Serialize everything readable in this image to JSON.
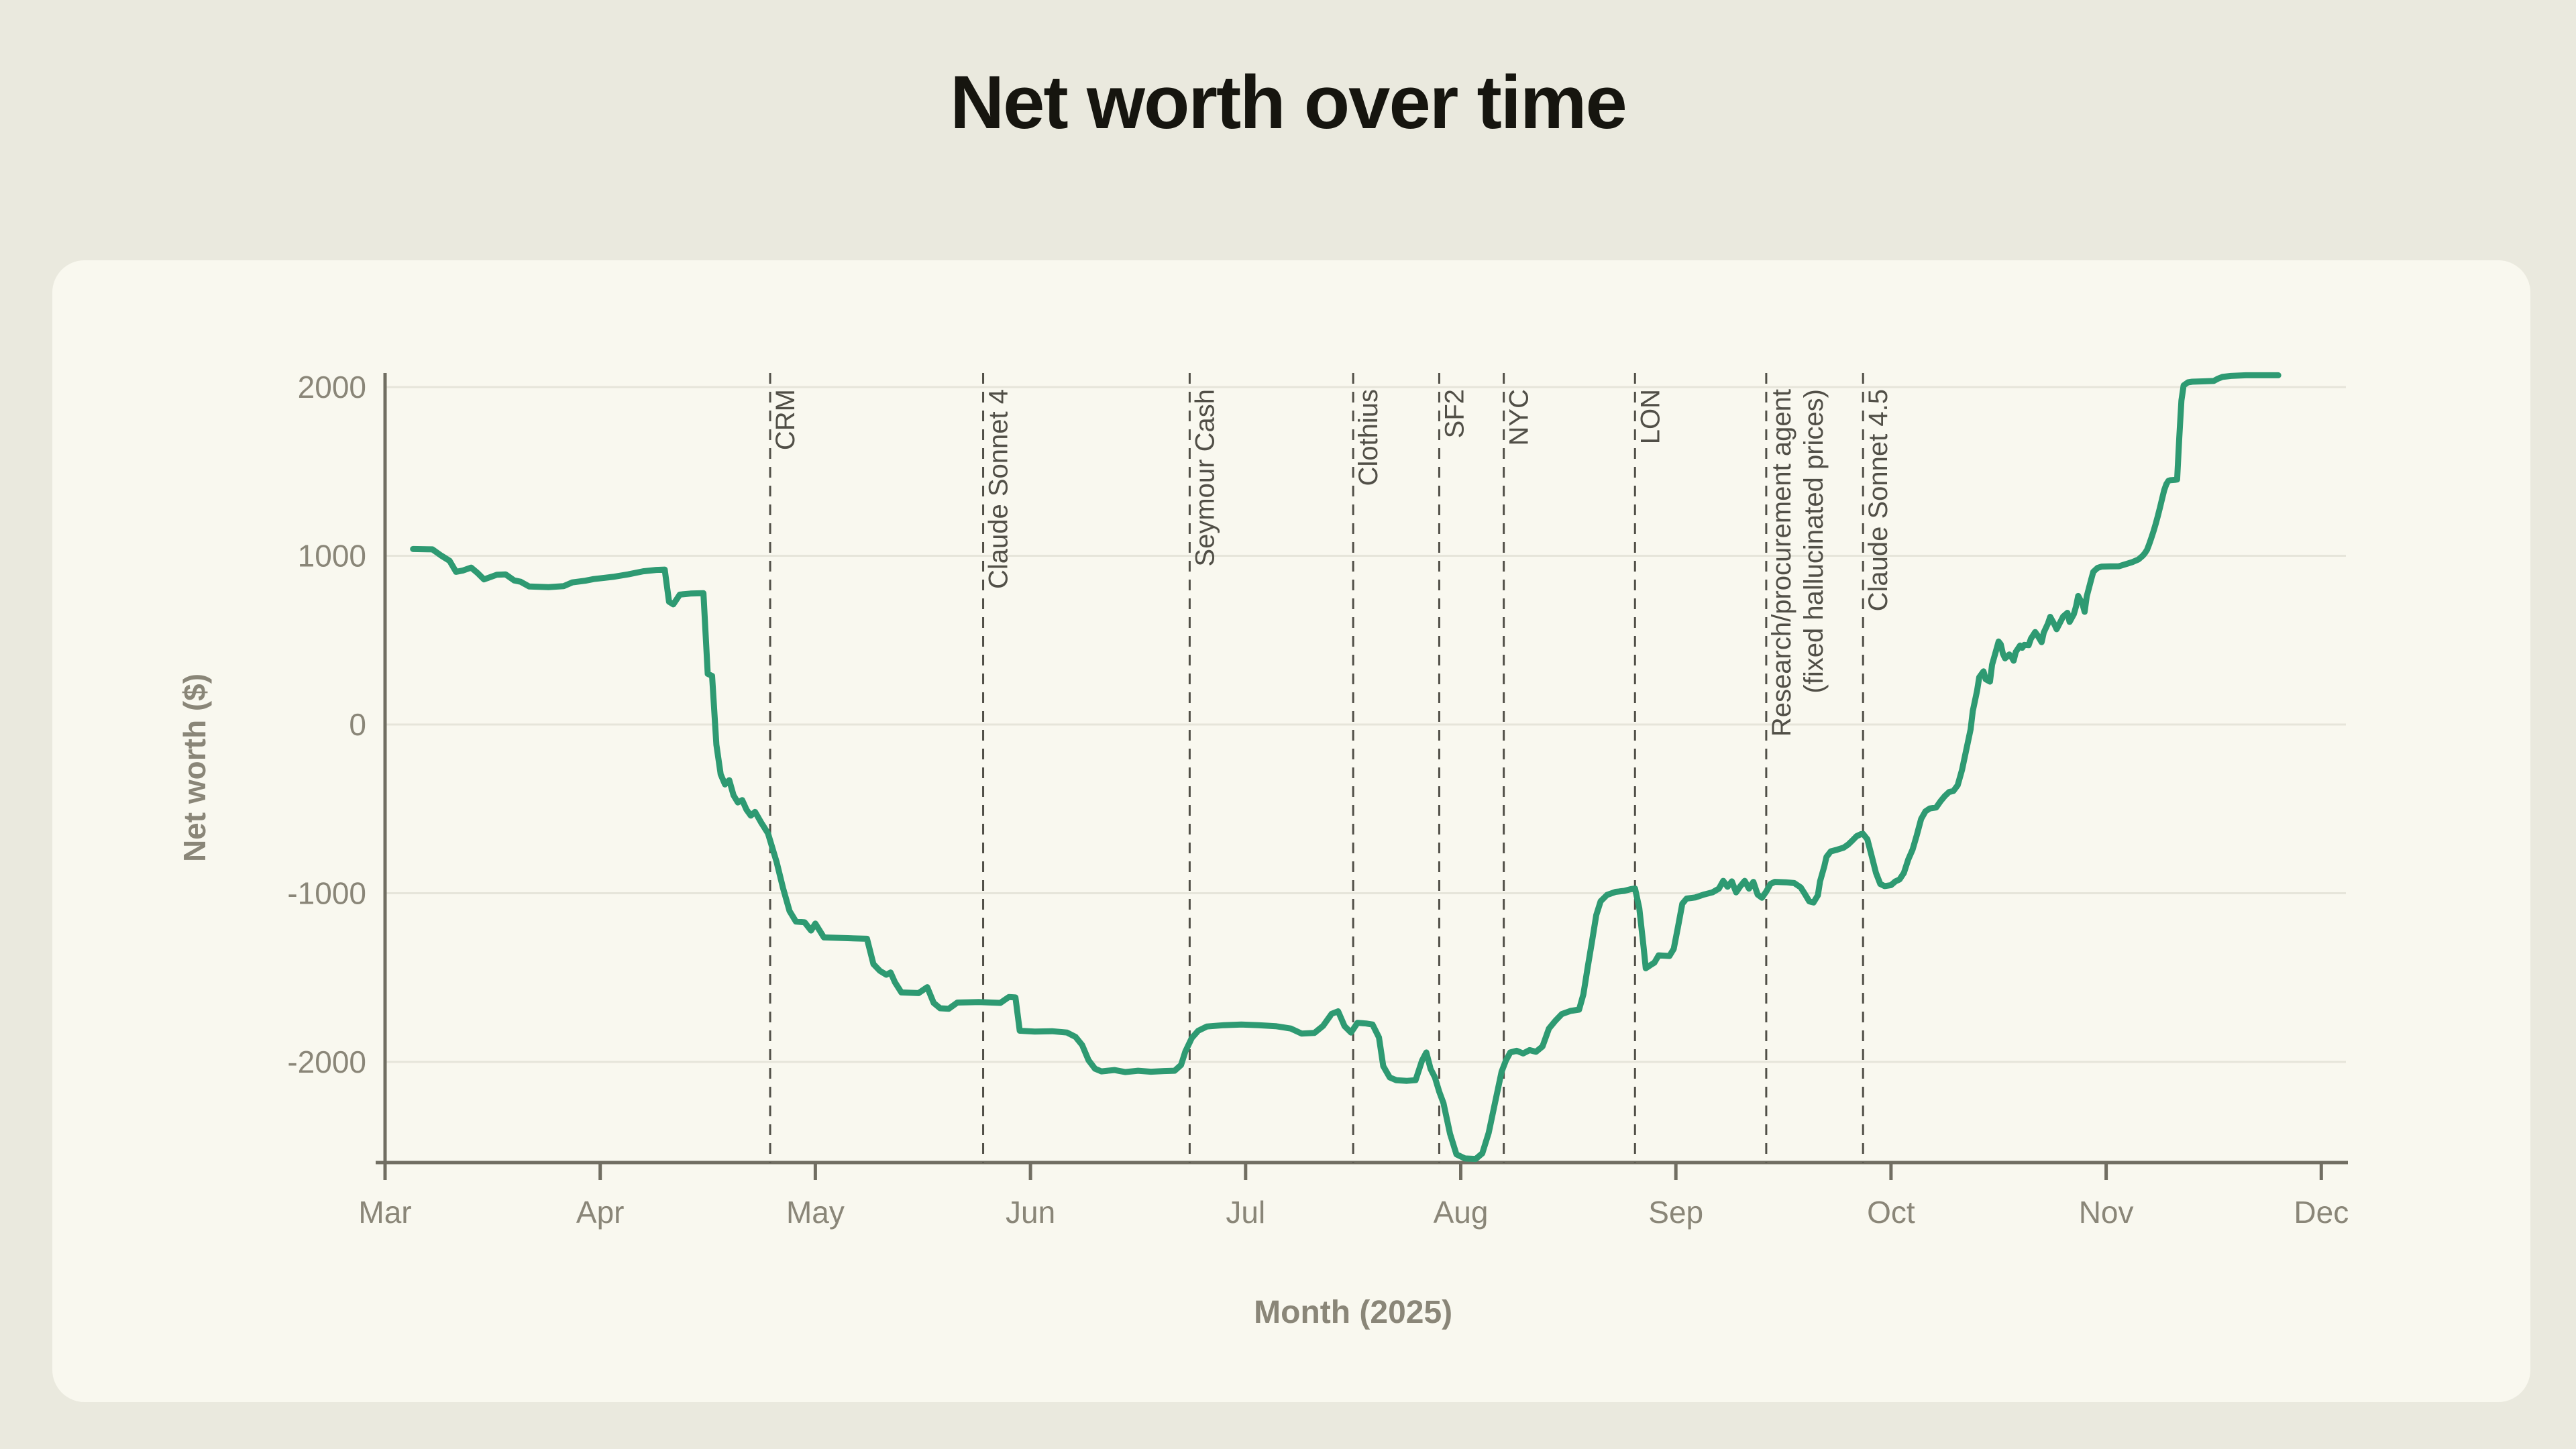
{
  "header": {
    "title": "Net worth over time"
  },
  "page": {
    "background": "#EAE9DE",
    "card_background": "#F9F8EF"
  },
  "chart_data": {
    "type": "line",
    "title": "Net worth over time",
    "xlabel": "Month (2025)",
    "ylabel": "Net worth ($)",
    "x_tick_labels": [
      "Mar",
      "Apr",
      "May",
      "Jun",
      "Jul",
      "Aug",
      "Sep",
      "Oct",
      "Nov",
      "Dec"
    ],
    "y_ticks": [
      2000,
      1000,
      0,
      -1000,
      -2000
    ],
    "ylim": [
      -2700,
      2300
    ],
    "xlim_months": [
      0,
      9
    ],
    "t_unit": "months since Mar 1, 2025 (0 = Mar, 9 = Dec)",
    "grid": true,
    "legend": false,
    "colors": {
      "line": "#2E9A72",
      "grid": "#E6E5DA",
      "spine": "#716E62",
      "tick_label": "#8A8678",
      "axis_title": "#8A8678",
      "annotation": "#514F47",
      "title": "#16150f"
    },
    "line_width": 9,
    "annotations": [
      {
        "label": "CRM",
        "t": 1.79
      },
      {
        "label": "Claude Sonnet 4",
        "t": 2.78
      },
      {
        "label": "Seymour Cash",
        "t": 3.74
      },
      {
        "label": "Clothius",
        "t": 4.5
      },
      {
        "label": "SF2",
        "t": 4.9
      },
      {
        "label": "NYC",
        "t": 5.2
      },
      {
        "label": "LON",
        "t": 5.81
      },
      {
        "label": "Research/procurement agent",
        "label2": "(fixed hallucinated prices)",
        "t": 6.42
      },
      {
        "label": "Claude Sonnet 4.5",
        "t": 6.87
      }
    ],
    "series": [
      {
        "name": "Net worth",
        "points": [
          [
            0.13,
            1040
          ],
          [
            0.22,
            1038
          ],
          [
            0.26,
            1002
          ],
          [
            0.3,
            970
          ],
          [
            0.33,
            905
          ],
          [
            0.36,
            912
          ],
          [
            0.4,
            930
          ],
          [
            0.43,
            898
          ],
          [
            0.46,
            860
          ],
          [
            0.52,
            888
          ],
          [
            0.56,
            890
          ],
          [
            0.6,
            854
          ],
          [
            0.63,
            846
          ],
          [
            0.67,
            818
          ],
          [
            0.76,
            814
          ],
          [
            0.83,
            820
          ],
          [
            0.87,
            842
          ],
          [
            0.93,
            852
          ],
          [
            0.97,
            862
          ],
          [
            1.06,
            875
          ],
          [
            1.13,
            890
          ],
          [
            1.2,
            908
          ],
          [
            1.26,
            916
          ],
          [
            1.3,
            918
          ],
          [
            1.32,
            728
          ],
          [
            1.34,
            712
          ],
          [
            1.37,
            770
          ],
          [
            1.42,
            776
          ],
          [
            1.48,
            778
          ],
          [
            1.5,
            300
          ],
          [
            1.52,
            288
          ],
          [
            1.54,
            -120
          ],
          [
            1.56,
            -295
          ],
          [
            1.58,
            -355
          ],
          [
            1.6,
            -330
          ],
          [
            1.62,
            -420
          ],
          [
            1.64,
            -462
          ],
          [
            1.66,
            -448
          ],
          [
            1.68,
            -505
          ],
          [
            1.7,
            -540
          ],
          [
            1.72,
            -518
          ],
          [
            1.75,
            -585
          ],
          [
            1.78,
            -645
          ],
          [
            1.82,
            -815
          ],
          [
            1.85,
            -970
          ],
          [
            1.88,
            -1105
          ],
          [
            1.91,
            -1168
          ],
          [
            1.95,
            -1172
          ],
          [
            1.98,
            -1221
          ],
          [
            2.0,
            -1180
          ],
          [
            2.04,
            -1262
          ],
          [
            2.14,
            -1266
          ],
          [
            2.24,
            -1270
          ],
          [
            2.27,
            -1420
          ],
          [
            2.3,
            -1460
          ],
          [
            2.33,
            -1483
          ],
          [
            2.35,
            -1470
          ],
          [
            2.37,
            -1528
          ],
          [
            2.4,
            -1588
          ],
          [
            2.48,
            -1592
          ],
          [
            2.52,
            -1557
          ],
          [
            2.55,
            -1650
          ],
          [
            2.58,
            -1682
          ],
          [
            2.62,
            -1685
          ],
          [
            2.66,
            -1648
          ],
          [
            2.76,
            -1645
          ],
          [
            2.86,
            -1650
          ],
          [
            2.9,
            -1615
          ],
          [
            2.93,
            -1618
          ],
          [
            2.95,
            -1815
          ],
          [
            3.02,
            -1820
          ],
          [
            3.1,
            -1818
          ],
          [
            3.17,
            -1826
          ],
          [
            3.21,
            -1852
          ],
          [
            3.24,
            -1900
          ],
          [
            3.27,
            -1990
          ],
          [
            3.3,
            -2040
          ],
          [
            3.33,
            -2056
          ],
          [
            3.39,
            -2048
          ],
          [
            3.44,
            -2060
          ],
          [
            3.5,
            -2052
          ],
          [
            3.56,
            -2058
          ],
          [
            3.62,
            -2054
          ],
          [
            3.67,
            -2052
          ],
          [
            3.7,
            -2018
          ],
          [
            3.72,
            -1938
          ],
          [
            3.75,
            -1858
          ],
          [
            3.78,
            -1815
          ],
          [
            3.82,
            -1790
          ],
          [
            3.9,
            -1782
          ],
          [
            3.98,
            -1778
          ],
          [
            4.06,
            -1782
          ],
          [
            4.14,
            -1788
          ],
          [
            4.21,
            -1802
          ],
          [
            4.26,
            -1832
          ],
          [
            4.32,
            -1828
          ],
          [
            4.36,
            -1786
          ],
          [
            4.4,
            -1715
          ],
          [
            4.43,
            -1700
          ],
          [
            4.46,
            -1788
          ],
          [
            4.49,
            -1826
          ],
          [
            4.52,
            -1768
          ],
          [
            4.56,
            -1772
          ],
          [
            4.59,
            -1778
          ],
          [
            4.62,
            -1855
          ],
          [
            4.64,
            -2025
          ],
          [
            4.67,
            -2092
          ],
          [
            4.7,
            -2108
          ],
          [
            4.75,
            -2112
          ],
          [
            4.79,
            -2108
          ],
          [
            4.82,
            -1992
          ],
          [
            4.84,
            -1944
          ],
          [
            4.86,
            -2042
          ],
          [
            4.88,
            -2092
          ],
          [
            4.9,
            -2176
          ],
          [
            4.92,
            -2245
          ],
          [
            4.95,
            -2425
          ],
          [
            4.98,
            -2548
          ],
          [
            5.02,
            -2572
          ],
          [
            5.07,
            -2575
          ],
          [
            5.1,
            -2542
          ],
          [
            5.13,
            -2420
          ],
          [
            5.16,
            -2238
          ],
          [
            5.19,
            -2058
          ],
          [
            5.21,
            -1992
          ],
          [
            5.23,
            -1944
          ],
          [
            5.26,
            -1934
          ],
          [
            5.29,
            -1950
          ],
          [
            5.32,
            -1930
          ],
          [
            5.35,
            -1940
          ],
          [
            5.38,
            -1908
          ],
          [
            5.41,
            -1802
          ],
          [
            5.44,
            -1756
          ],
          [
            5.47,
            -1716
          ],
          [
            5.51,
            -1698
          ],
          [
            5.55,
            -1690
          ],
          [
            5.57,
            -1600
          ],
          [
            5.59,
            -1440
          ],
          [
            5.61,
            -1288
          ],
          [
            5.63,
            -1130
          ],
          [
            5.65,
            -1048
          ],
          [
            5.68,
            -1010
          ],
          [
            5.72,
            -992
          ],
          [
            5.76,
            -986
          ],
          [
            5.79,
            -976
          ],
          [
            5.81,
            -972
          ],
          [
            5.83,
            -1090
          ],
          [
            5.85,
            -1320
          ],
          [
            5.86,
            -1445
          ],
          [
            5.88,
            -1428
          ],
          [
            5.9,
            -1412
          ],
          [
            5.92,
            -1368
          ],
          [
            5.97,
            -1372
          ],
          [
            5.99,
            -1330
          ],
          [
            6.01,
            -1199
          ],
          [
            6.03,
            -1062
          ],
          [
            6.05,
            -1032
          ],
          [
            6.09,
            -1025
          ],
          [
            6.13,
            -1008
          ],
          [
            6.17,
            -995
          ],
          [
            6.2,
            -973
          ],
          [
            6.22,
            -927
          ],
          [
            6.24,
            -962
          ],
          [
            6.26,
            -930
          ],
          [
            6.28,
            -995
          ],
          [
            6.3,
            -958
          ],
          [
            6.32,
            -927
          ],
          [
            6.34,
            -973
          ],
          [
            6.36,
            -933
          ],
          [
            6.38,
            -1008
          ],
          [
            6.4,
            -1027
          ],
          [
            6.42,
            -990
          ],
          [
            6.44,
            -945
          ],
          [
            6.46,
            -933
          ],
          [
            6.51,
            -935
          ],
          [
            6.55,
            -940
          ],
          [
            6.58,
            -965
          ],
          [
            6.6,
            -1005
          ],
          [
            6.62,
            -1048
          ],
          [
            6.64,
            -1055
          ],
          [
            6.66,
            -1012
          ],
          [
            6.67,
            -930
          ],
          [
            6.69,
            -840
          ],
          [
            6.7,
            -785
          ],
          [
            6.72,
            -752
          ],
          [
            6.75,
            -742
          ],
          [
            6.78,
            -730
          ],
          [
            6.8,
            -712
          ],
          [
            6.82,
            -688
          ],
          [
            6.84,
            -662
          ],
          [
            6.86,
            -650
          ],
          [
            6.87,
            -648
          ],
          [
            6.89,
            -680
          ],
          [
            6.91,
            -778
          ],
          [
            6.93,
            -880
          ],
          [
            6.95,
            -945
          ],
          [
            6.97,
            -958
          ],
          [
            7.0,
            -952
          ],
          [
            7.02,
            -930
          ],
          [
            7.04,
            -918
          ],
          [
            7.06,
            -880
          ],
          [
            7.08,
            -800
          ],
          [
            7.1,
            -742
          ],
          [
            7.12,
            -655
          ],
          [
            7.14,
            -560
          ],
          [
            7.16,
            -515
          ],
          [
            7.18,
            -498
          ],
          [
            7.21,
            -492
          ],
          [
            7.23,
            -455
          ],
          [
            7.25,
            -424
          ],
          [
            7.27,
            -400
          ],
          [
            7.29,
            -394
          ],
          [
            7.31,
            -360
          ],
          [
            7.33,
            -270
          ],
          [
            7.35,
            -150
          ],
          [
            7.37,
            -28
          ],
          [
            7.38,
            80
          ],
          [
            7.4,
            200
          ],
          [
            7.41,
            280
          ],
          [
            7.43,
            315
          ],
          [
            7.44,
            268
          ],
          [
            7.46,
            254
          ],
          [
            7.47,
            355
          ],
          [
            7.49,
            445
          ],
          [
            7.5,
            492
          ],
          [
            7.51,
            475
          ],
          [
            7.52,
            420
          ],
          [
            7.53,
            392
          ],
          [
            7.55,
            415
          ],
          [
            7.56,
            400
          ],
          [
            7.57,
            378
          ],
          [
            7.58,
            430
          ],
          [
            7.6,
            468
          ],
          [
            7.61,
            455
          ],
          [
            7.62,
            472
          ],
          [
            7.64,
            470
          ],
          [
            7.65,
            508
          ],
          [
            7.67,
            548
          ],
          [
            7.68,
            530
          ],
          [
            7.7,
            488
          ],
          [
            7.71,
            545
          ],
          [
            7.73,
            600
          ],
          [
            7.74,
            638
          ],
          [
            7.76,
            592
          ],
          [
            7.77,
            565
          ],
          [
            7.79,
            615
          ],
          [
            7.8,
            640
          ],
          [
            7.82,
            662
          ],
          [
            7.83,
            608
          ],
          [
            7.85,
            655
          ],
          [
            7.86,
            700
          ],
          [
            7.87,
            762
          ],
          [
            7.89,
            715
          ],
          [
            7.9,
            668
          ],
          [
            7.91,
            760
          ],
          [
            7.93,
            858
          ],
          [
            7.94,
            905
          ],
          [
            7.96,
            928
          ],
          [
            7.98,
            936
          ],
          [
            8.02,
            937
          ],
          [
            8.06,
            938
          ],
          [
            8.09,
            950
          ],
          [
            8.12,
            962
          ],
          [
            8.15,
            978
          ],
          [
            8.17,
            1000
          ],
          [
            8.18,
            1015
          ],
          [
            8.19,
            1035
          ],
          [
            8.2,
            1068
          ],
          [
            8.21,
            1105
          ],
          [
            8.22,
            1145
          ],
          [
            8.23,
            1188
          ],
          [
            8.24,
            1235
          ],
          [
            8.25,
            1285
          ],
          [
            8.26,
            1338
          ],
          [
            8.27,
            1390
          ],
          [
            8.28,
            1425
          ],
          [
            8.29,
            1445
          ],
          [
            8.3,
            1448
          ],
          [
            8.32,
            1450
          ],
          [
            8.33,
            1452
          ],
          [
            8.34,
            1700
          ],
          [
            8.35,
            1920
          ],
          [
            8.36,
            2010
          ],
          [
            8.38,
            2028
          ],
          [
            8.4,
            2032
          ],
          [
            8.46,
            2034
          ],
          [
            8.5,
            2036
          ],
          [
            8.52,
            2050
          ],
          [
            8.54,
            2060
          ],
          [
            8.58,
            2066
          ],
          [
            8.65,
            2070
          ],
          [
            8.72,
            2070
          ],
          [
            8.8,
            2070
          ]
        ]
      }
    ]
  }
}
